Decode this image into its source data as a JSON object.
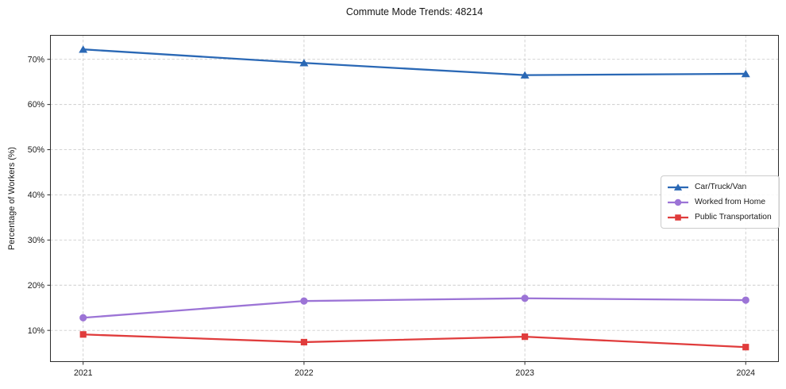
{
  "chart_data": {
    "type": "line",
    "title": "Commute Mode Trends: 48214",
    "xlabel": "",
    "ylabel": "Percentage of Workers (%)",
    "x": [
      2021,
      2022,
      2023,
      2024
    ],
    "x_tick_labels": [
      "2021",
      "2022",
      "2023",
      "2024"
    ],
    "y_ticks": [
      10,
      20,
      30,
      40,
      50,
      60,
      70
    ],
    "y_tick_labels": [
      "10%",
      "20%",
      "30%",
      "40%",
      "50%",
      "60%",
      "70%"
    ],
    "xlim": [
      2020.85,
      2024.15
    ],
    "ylim": [
      3.0,
      75.4
    ],
    "grid": true,
    "grid_style": "dashed",
    "legend_position": "center-right",
    "series": [
      {
        "name": "Car/Truck/Van",
        "marker": "triangle",
        "color": "#2a68b5",
        "values": [
          72.2,
          69.2,
          66.5,
          66.8
        ]
      },
      {
        "name": "Worked from Home",
        "marker": "circle",
        "color": "#9c74d6",
        "values": [
          12.8,
          16.5,
          17.1,
          16.7
        ]
      },
      {
        "name": "Public Transportation",
        "marker": "square",
        "color": "#e03c3c",
        "values": [
          9.1,
          7.4,
          8.6,
          6.3
        ]
      }
    ],
    "colors": {
      "grid": "#cdcdcd",
      "spine": "#2b2b2b",
      "tick_text": "#1a1a1a"
    }
  }
}
